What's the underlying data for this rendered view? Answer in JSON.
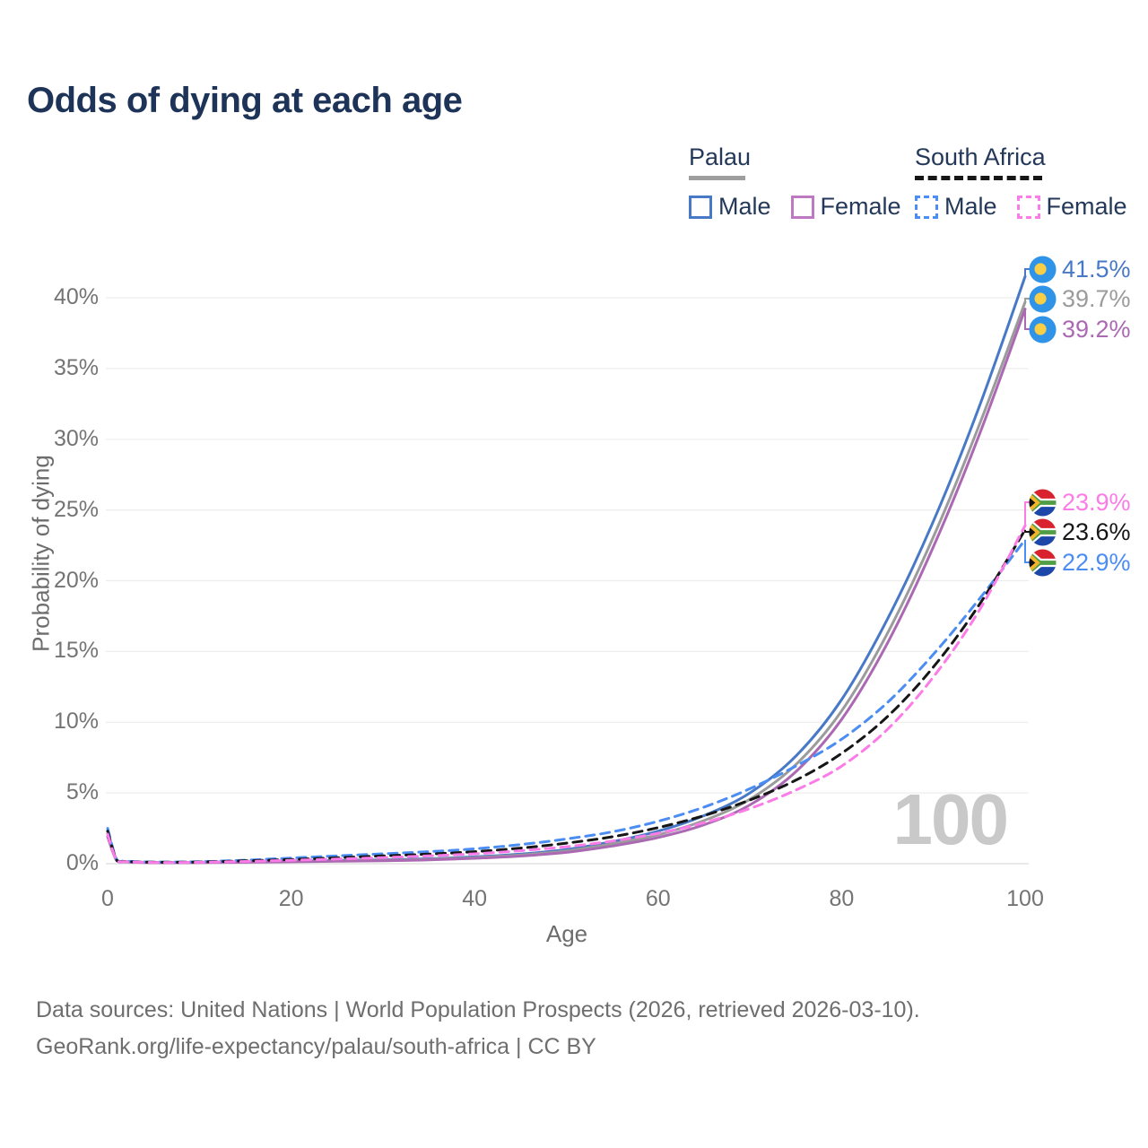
{
  "title": "Odds of dying at each age",
  "legend": {
    "palau": {
      "label": "Palau",
      "male": "Male",
      "female": "Female"
    },
    "south_africa": {
      "label": "South Africa",
      "male": "Male",
      "female": "Female"
    }
  },
  "axis": {
    "y_label": "Probability of dying",
    "x_label": "Age",
    "y_ticks": [
      "0%",
      "5%",
      "10%",
      "15%",
      "20%",
      "25%",
      "30%",
      "35%",
      "40%"
    ],
    "x_ticks": [
      "0",
      "20",
      "40",
      "60",
      "80",
      "100"
    ]
  },
  "watermark": "100",
  "end_labels": {
    "palau_male": "41.5%",
    "palau_total": "39.7%",
    "palau_female": "39.2%",
    "sa_female": "23.9%",
    "sa_total": "23.6%",
    "sa_male": "22.9%"
  },
  "footer": {
    "line1": "Data sources: United Nations | World Population Prospects (2026, retrieved 2026-03-10).",
    "line2": "GeoRank.org/life-expectancy/palau/south-africa | CC BY"
  },
  "colors": {
    "title_text": "#1d3458",
    "axis_text": "#747474",
    "gridline": "#ededed",
    "baseline": "#e2e2e2",
    "watermark": "#c9c9c9",
    "palau_male": "#4879c6",
    "palau_total": "#9b9b9b",
    "palau_female": "#ab68b3",
    "sa_male": "#4b8df3",
    "sa_total": "#161616",
    "sa_female": "#fb7be7",
    "palau_flag_blue": "#2f93e8",
    "palau_flag_yellow": "#f7ce46",
    "sa_flag_red": "#d8222e",
    "sa_flag_blue": "#1c46a8",
    "sa_flag_green": "#4f9e45",
    "sa_flag_gold": "#f0b52b"
  },
  "chart_data": {
    "type": "line",
    "title": "Odds of dying at each age",
    "xlabel": "Age",
    "ylabel": "Probability of dying",
    "x_range": [
      0,
      100
    ],
    "y_range_percent": [
      0,
      42
    ],
    "grid": "horizontal",
    "legend_position": "top-right",
    "x": [
      0,
      1,
      2,
      5,
      10,
      15,
      20,
      25,
      30,
      35,
      40,
      45,
      50,
      55,
      60,
      65,
      70,
      75,
      80,
      85,
      90,
      95,
      100
    ],
    "series": [
      {
        "name": "Palau Male",
        "country": "Palau",
        "sex": "Male",
        "style": "solid",
        "color": "#4879c6",
        "end_label": "41.5%",
        "values": [
          2.3,
          0.25,
          0.15,
          0.09,
          0.1,
          0.14,
          0.19,
          0.23,
          0.28,
          0.35,
          0.48,
          0.68,
          1.0,
          1.55,
          2.3,
          3.4,
          5.0,
          7.6,
          11.6,
          17.3,
          24.2,
          32.3,
          41.5
        ]
      },
      {
        "name": "Palau Both sexes",
        "country": "Palau",
        "sex": "Both",
        "style": "solid",
        "color": "#9b9b9b",
        "end_label": "39.7%",
        "values": [
          2.1,
          0.22,
          0.13,
          0.08,
          0.09,
          0.12,
          0.16,
          0.2,
          0.24,
          0.31,
          0.43,
          0.61,
          0.9,
          1.4,
          2.05,
          3.05,
          4.55,
          7.0,
          10.8,
          16.3,
          23.1,
          31.0,
          39.7
        ]
      },
      {
        "name": "Palau Female",
        "country": "Palau",
        "sex": "Female",
        "style": "solid",
        "color": "#ab68b3",
        "end_label": "39.2%",
        "values": [
          1.9,
          0.2,
          0.12,
          0.07,
          0.08,
          0.1,
          0.13,
          0.17,
          0.21,
          0.27,
          0.38,
          0.54,
          0.8,
          1.25,
          1.85,
          2.75,
          4.15,
          6.5,
          10.2,
          15.6,
          22.4,
          30.3,
          39.2
        ]
      },
      {
        "name": "South Africa Male",
        "country": "South Africa",
        "sex": "Male",
        "style": "dashed",
        "color": "#4b8df3",
        "end_label": "22.9%",
        "values": [
          2.5,
          0.28,
          0.18,
          0.12,
          0.14,
          0.25,
          0.4,
          0.55,
          0.7,
          0.85,
          1.05,
          1.35,
          1.75,
          2.25,
          3.0,
          4.0,
          5.3,
          6.9,
          8.8,
          11.4,
          14.8,
          18.7,
          22.9
        ]
      },
      {
        "name": "South Africa Both sexes",
        "country": "South Africa",
        "sex": "Both",
        "style": "dashed",
        "color": "#161616",
        "end_label": "23.6%",
        "values": [
          2.3,
          0.25,
          0.16,
          0.1,
          0.12,
          0.2,
          0.3,
          0.42,
          0.55,
          0.68,
          0.85,
          1.1,
          1.45,
          1.9,
          2.55,
          3.4,
          4.5,
          5.9,
          7.8,
          10.4,
          13.9,
          18.3,
          23.6
        ]
      },
      {
        "name": "South Africa Female",
        "country": "South Africa",
        "sex": "Female",
        "style": "dashed",
        "color": "#fb7be7",
        "end_label": "23.9%",
        "values": [
          2.1,
          0.22,
          0.14,
          0.09,
          0.1,
          0.16,
          0.24,
          0.33,
          0.43,
          0.55,
          0.7,
          0.92,
          1.2,
          1.6,
          2.15,
          2.9,
          3.9,
          5.2,
          6.9,
          9.5,
          13.2,
          17.9,
          23.9
        ]
      }
    ]
  }
}
